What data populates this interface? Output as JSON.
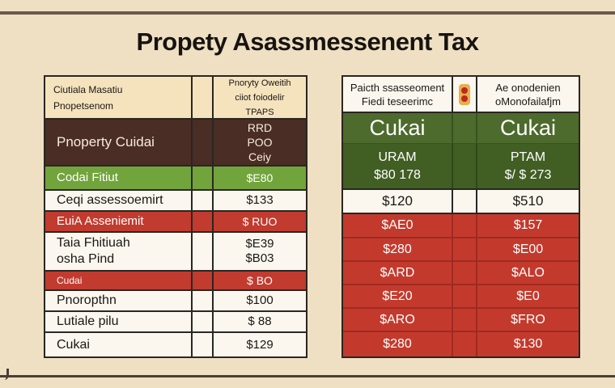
{
  "title": "Propety Asassmessenent Tax",
  "left_table": {
    "header": {
      "label_lines": [
        "Ciutiala Masatiu",
        "Pnopetsenom"
      ],
      "value_lines": [
        "Pnoryty Oweitih",
        "ciiot foiodelir",
        "TPAPS"
      ]
    },
    "rows": [
      {
        "label_lines": [
          "Pnoperty Cuidai"
        ],
        "value_lines": [
          "RRD",
          "POO",
          "Ceiy"
        ],
        "style": "dark"
      },
      {
        "label_lines": [
          "Codai Fitiut"
        ],
        "value_lines": [
          "$E80"
        ],
        "style": "green"
      },
      {
        "label_lines": [
          "Ceqi assessoemirt"
        ],
        "value_lines": [
          "$133"
        ],
        "style": "white"
      },
      {
        "label_lines": [
          "EuiA Asseniemit"
        ],
        "value_lines": [
          "$ RUO"
        ],
        "style": "red"
      },
      {
        "label_lines": [
          "Taia Fhitiuah",
          "osha Pind"
        ],
        "value_lines": [
          "$E39",
          "$B03"
        ],
        "style": "white"
      },
      {
        "label_lines": [
          "Cudai"
        ],
        "value_lines": [
          "$ BO"
        ],
        "style": "red"
      },
      {
        "label_lines": [
          "Pnoropthn"
        ],
        "value_lines": [
          "$100"
        ],
        "style": "white"
      },
      {
        "label_lines": [
          "Lutiale pilu"
        ],
        "value_lines": [
          "$ 88"
        ],
        "style": "white"
      },
      {
        "label_lines": [
          "Cukai"
        ],
        "value_lines": [
          "$129"
        ],
        "style": "white"
      }
    ]
  },
  "right_table": {
    "header": {
      "col1_lines": [
        "Paicth ssasseoment",
        "Fiedi teseerimc"
      ],
      "col3_lines": [
        "Ae onodenien",
        "oMonofailafjm"
      ]
    },
    "title_row": {
      "col1": "Cukai",
      "col3": "Cukai"
    },
    "sub_row": {
      "col1_lines": [
        "URAM",
        "$80 178"
      ],
      "col3_lines": [
        "PTAM",
        "$/ $ 273"
      ]
    },
    "total_row": {
      "col1": "$120",
      "col3": "$510"
    },
    "red_rows": [
      {
        "col1": "$AE0",
        "col3": "$157"
      },
      {
        "col1": "$280",
        "col3": "$E00"
      },
      {
        "col1": "$ARD",
        "col3": "$ALO"
      },
      {
        "col1": "$E20",
        "col3": "$E0"
      },
      {
        "col1": "$ARO",
        "col3": "$FRO"
      },
      {
        "col1": "$280",
        "col3": "$130"
      }
    ]
  }
}
